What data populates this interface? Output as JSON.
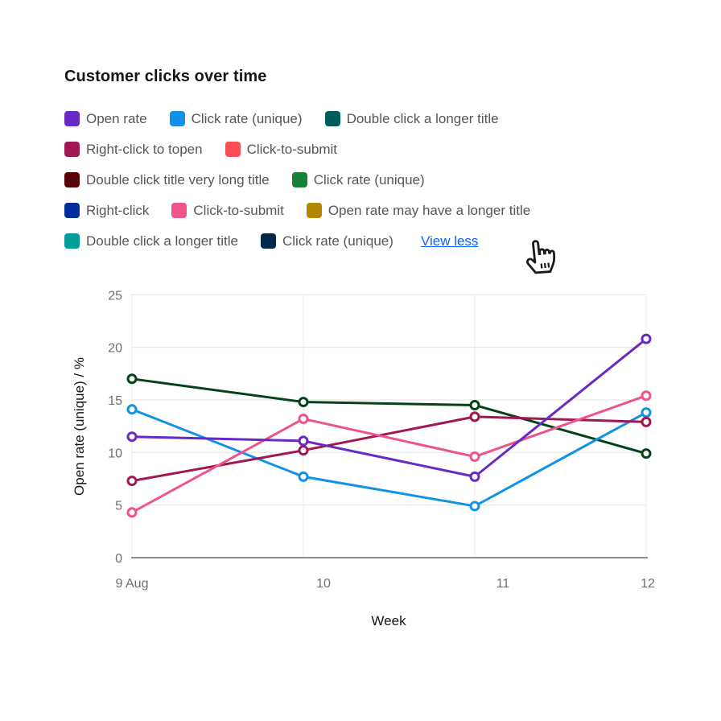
{
  "title": "Customer clicks over time",
  "legend": {
    "items": [
      {
        "label": "Open rate",
        "color": "#6929c4"
      },
      {
        "label": "Click rate (unique)",
        "color": "#1192e8"
      },
      {
        "label": "Double click a longer title",
        "color": "#005d5d"
      },
      {
        "label": "Right-click to topen",
        "color": "#9f1853"
      },
      {
        "label": "Click-to-submit",
        "color": "#fa4d56"
      },
      {
        "label": "Double click title very long title",
        "color": "#570408"
      },
      {
        "label": "Click rate (unique)",
        "color": "#198038"
      },
      {
        "label": "Right-click",
        "color": "#002d9c"
      },
      {
        "label": "Click-to-submit",
        "color": "#ee538b"
      },
      {
        "label": "Open rate may have a longer title",
        "color": "#b28600"
      },
      {
        "label": "Double click a longer title",
        "color": "#009d9a"
      },
      {
        "label": "Click rate (unique)",
        "color": "#012749"
      }
    ],
    "link_label": "View less"
  },
  "chart_data": {
    "type": "line",
    "title": "Customer clicks over time",
    "xlabel": "Week",
    "ylabel": "Open rate (unique) / %",
    "categories": [
      "9 Aug",
      "10",
      "11",
      "12"
    ],
    "x_tick_labels": [
      "9 Aug",
      "10",
      "11",
      "12"
    ],
    "y_ticks": [
      0,
      5,
      10,
      15,
      20,
      25
    ],
    "ylim": [
      0,
      25
    ],
    "grid": true,
    "legend_position": "top",
    "marker": "hollow-circle",
    "series": [
      {
        "name": "Double click a longer title",
        "color": "#044317",
        "values": [
          17.0,
          14.8,
          14.5,
          9.9
        ]
      },
      {
        "name": "Click rate (unique)",
        "color": "#1192e8",
        "values": [
          14.1,
          7.7,
          4.9,
          13.8
        ]
      },
      {
        "name": "Right-click to topen",
        "color": "#9f1853",
        "values": [
          7.3,
          10.2,
          13.4,
          12.9
        ]
      },
      {
        "name": "Click-to-submit",
        "color": "#ee538b",
        "values": [
          4.3,
          13.2,
          9.6,
          15.4
        ]
      },
      {
        "name": "Open rate",
        "color": "#6929c4",
        "values": [
          11.5,
          11.1,
          7.7,
          20.8
        ]
      }
    ]
  },
  "colors": {
    "link": "#0f62fe",
    "legend_text": "#565656",
    "tick_text": "#6f6f6f",
    "axis_title_text": "#161616",
    "grid_h": "#e2e2e2",
    "grid_v": "#ececec",
    "axis_line": "#8d8d8d",
    "marker_fill": "#ffffff"
  }
}
